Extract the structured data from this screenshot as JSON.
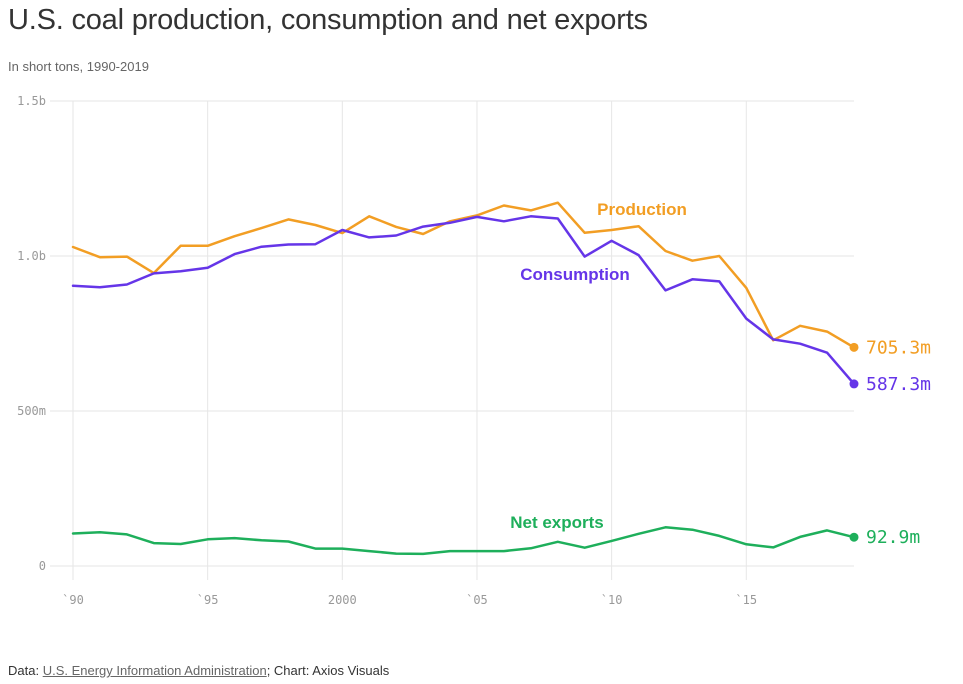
{
  "header": {
    "title": "U.S. coal production, consumption and net exports",
    "subtitle": "In short tons, 1990-2019"
  },
  "footer": {
    "prefix": "Data: ",
    "source_link": "U.S. Energy Information Administration",
    "suffix": "; Chart: Axios Visuals"
  },
  "chart_data": {
    "type": "line",
    "title": "U.S. coal production, consumption and net exports",
    "subtitle": "In short tons, 1990-2019",
    "xlabel": "",
    "ylabel": "",
    "xlim": [
      1990,
      2019
    ],
    "ylim": [
      0,
      1500
    ],
    "unit": "million short tons",
    "grid": true,
    "y_ticks": [
      {
        "value": 0,
        "label": "0"
      },
      {
        "value": 500,
        "label": "500m"
      },
      {
        "value": 1000,
        "label": "1.0b"
      },
      {
        "value": 1500,
        "label": "1.5b"
      }
    ],
    "x_ticks": [
      {
        "value": 1990,
        "label": "`90"
      },
      {
        "value": 1995,
        "label": "`95"
      },
      {
        "value": 2000,
        "label": "2000"
      },
      {
        "value": 2005,
        "label": "`05"
      },
      {
        "value": 2010,
        "label": "`10"
      },
      {
        "value": 2015,
        "label": "`15"
      }
    ],
    "x": [
      1990,
      1991,
      1992,
      1993,
      1994,
      1995,
      1996,
      1997,
      1998,
      1999,
      2000,
      2001,
      2002,
      2003,
      2004,
      2005,
      2006,
      2007,
      2008,
      2009,
      2010,
      2011,
      2012,
      2013,
      2014,
      2015,
      2016,
      2017,
      2018,
      2019
    ],
    "series": [
      {
        "name": "Production",
        "color": "#f29e24",
        "end_label": "705.3m",
        "values": [
          1029,
          996,
          998,
          945,
          1033,
          1033,
          1064,
          1090,
          1118,
          1100,
          1074,
          1128,
          1094,
          1071,
          1112,
          1131,
          1163,
          1147,
          1172,
          1075,
          1084,
          1096,
          1016,
          985,
          1000,
          897,
          728,
          775,
          756,
          705.3
        ]
      },
      {
        "name": "Consumption",
        "color": "#6535e8",
        "end_label": "587.3m",
        "values": [
          904,
          899,
          908,
          944,
          951,
          962,
          1006,
          1030,
          1037,
          1038,
          1084,
          1060,
          1066,
          1095,
          1107,
          1126,
          1112,
          1128,
          1121,
          998,
          1049,
          1003,
          889,
          925,
          918,
          798,
          731,
          717,
          688,
          587.3
        ]
      },
      {
        "name": "Net exports",
        "color": "#1eaf5b",
        "end_label": "92.9m",
        "values": [
          105,
          109,
          102,
          74,
          71,
          86,
          90,
          83,
          79,
          56,
          56,
          48,
          40,
          39,
          48,
          48,
          48,
          57,
          78,
          59,
          81,
          104,
          125,
          117,
          97,
          70,
          60,
          94,
          115,
          92.9
        ]
      }
    ]
  }
}
